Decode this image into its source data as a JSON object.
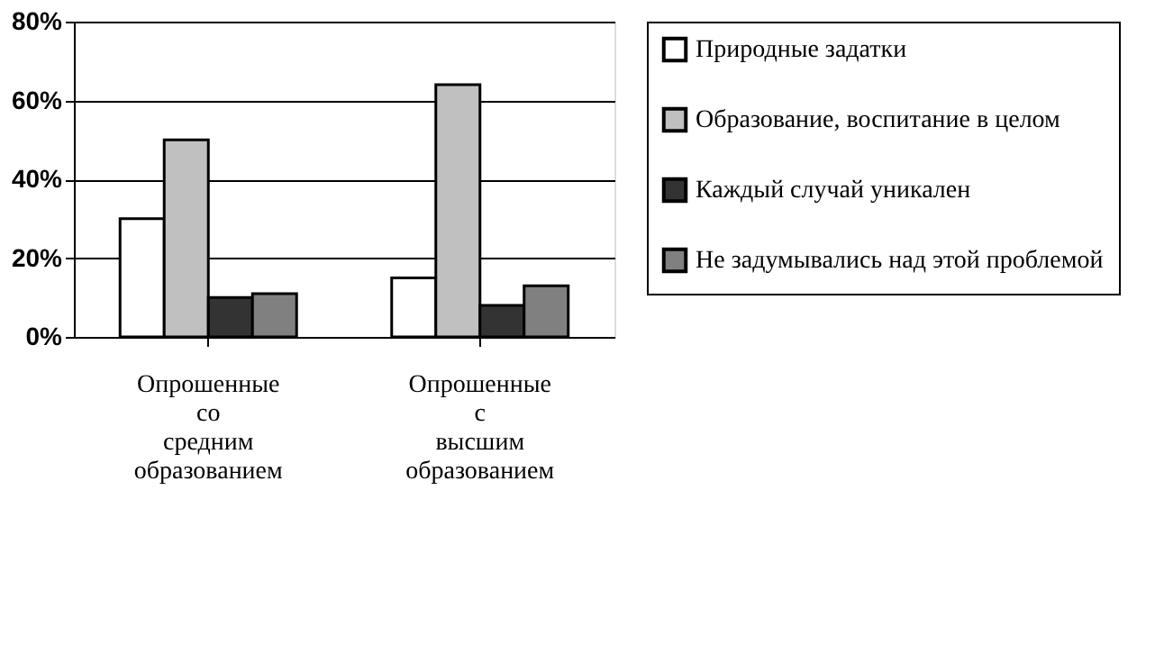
{
  "chart_data": {
    "type": "bar",
    "categories": [
      "Опрошенные со средним образованием",
      "Опрошенные с высшим образованием"
    ],
    "series": [
      {
        "name": "Природные задатки",
        "color": "#ffffff",
        "values": [
          30,
          15
        ]
      },
      {
        "name": "Образование, воспитание в целом",
        "color": "#c0c0c0",
        "values": [
          50,
          64
        ]
      },
      {
        "name": "Каждый случай уникален",
        "color": "#333333",
        "values": [
          10,
          8
        ]
      },
      {
        "name": "Не задумывались над этой проблемой",
        "color": "#808080",
        "values": [
          11,
          13
        ]
      }
    ],
    "ylim": [
      0,
      80
    ],
    "yticks": [
      {
        "value": 0,
        "label": "0%"
      },
      {
        "value": 20,
        "label": "20%"
      },
      {
        "value": 40,
        "label": "40%"
      },
      {
        "value": 60,
        "label": "60%"
      },
      {
        "value": 80,
        "label": "80%"
      }
    ],
    "grid": "y",
    "legend": "right"
  }
}
